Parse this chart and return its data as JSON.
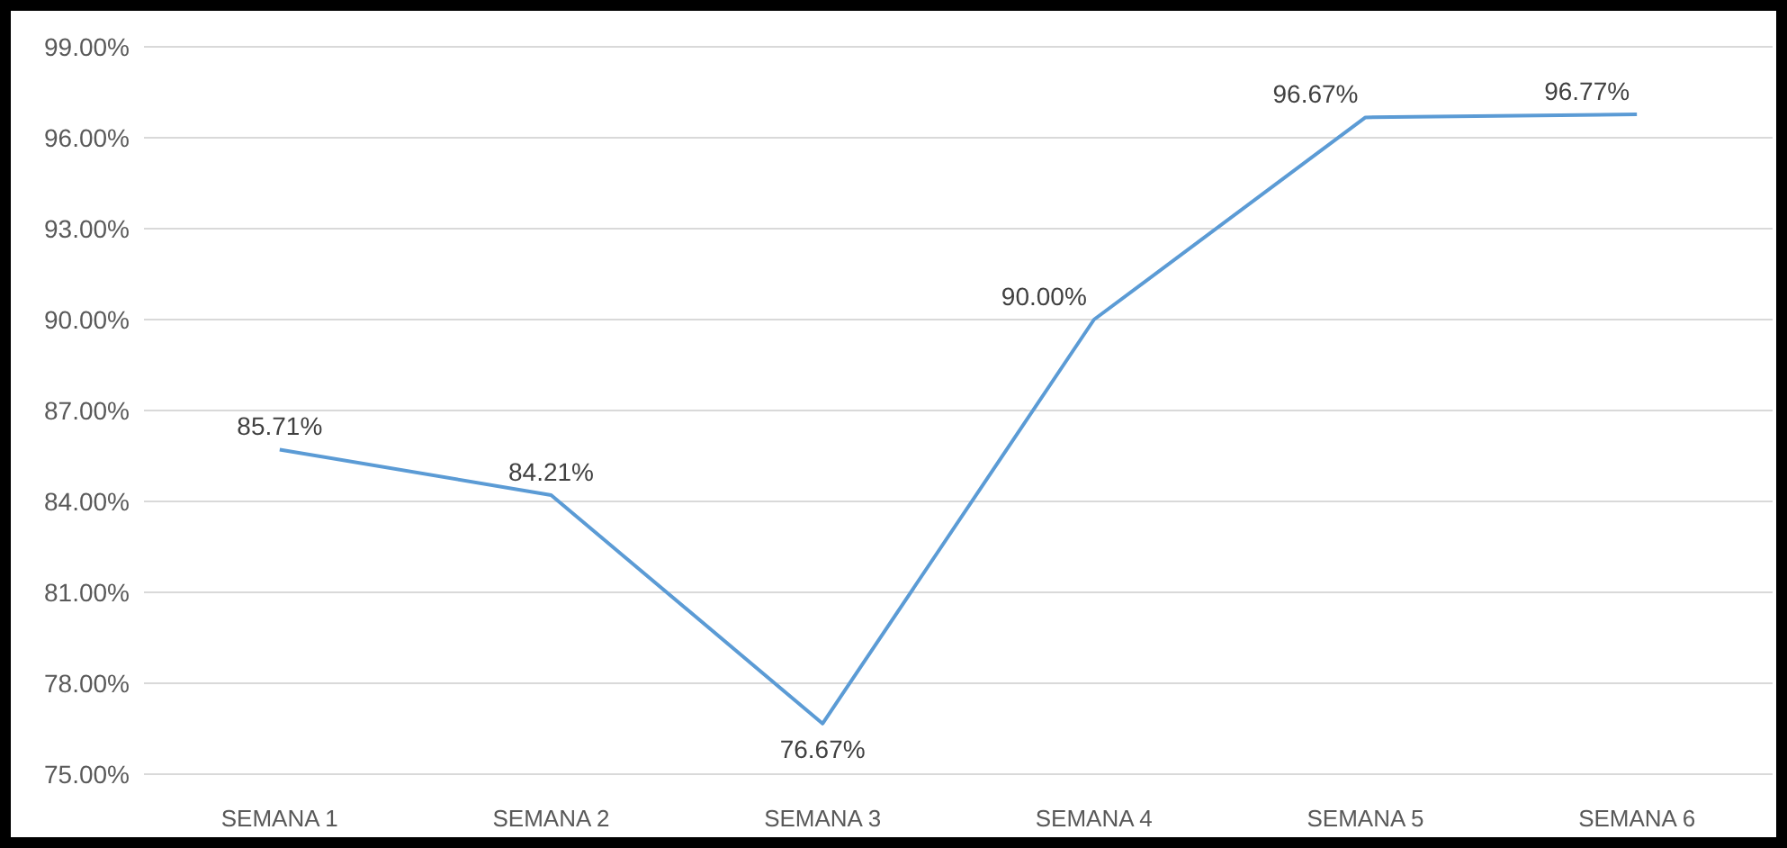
{
  "chart_data": {
    "type": "line",
    "categories": [
      "SEMANA 1",
      "SEMANA 2",
      "SEMANA 3",
      "SEMANA 4",
      "SEMANA 5",
      "SEMANA 6"
    ],
    "series": [
      {
        "color": "#5b9bd5",
        "values": [
          85.71,
          84.21,
          76.67,
          90.0,
          96.67,
          96.77
        ],
        "value_labels": [
          "85.71%",
          "84.21%",
          "76.67%",
          "90.00%",
          "96.67%",
          "96.77%"
        ]
      }
    ],
    "ylim": [
      75,
      99
    ],
    "yticks": [
      {
        "value": 75,
        "label": "75.00%"
      },
      {
        "value": 78,
        "label": "78.00%"
      },
      {
        "value": 81,
        "label": "81.00%"
      },
      {
        "value": 84,
        "label": "84.00%"
      },
      {
        "value": 87,
        "label": "87.00%"
      },
      {
        "value": 90,
        "label": "90.00%"
      },
      {
        "value": 93,
        "label": "93.00%"
      },
      {
        "value": 96,
        "label": "96.00%"
      },
      {
        "value": 99,
        "label": "99.00%"
      }
    ],
    "grid": "y",
    "marker": "none",
    "line_style": "solid"
  }
}
